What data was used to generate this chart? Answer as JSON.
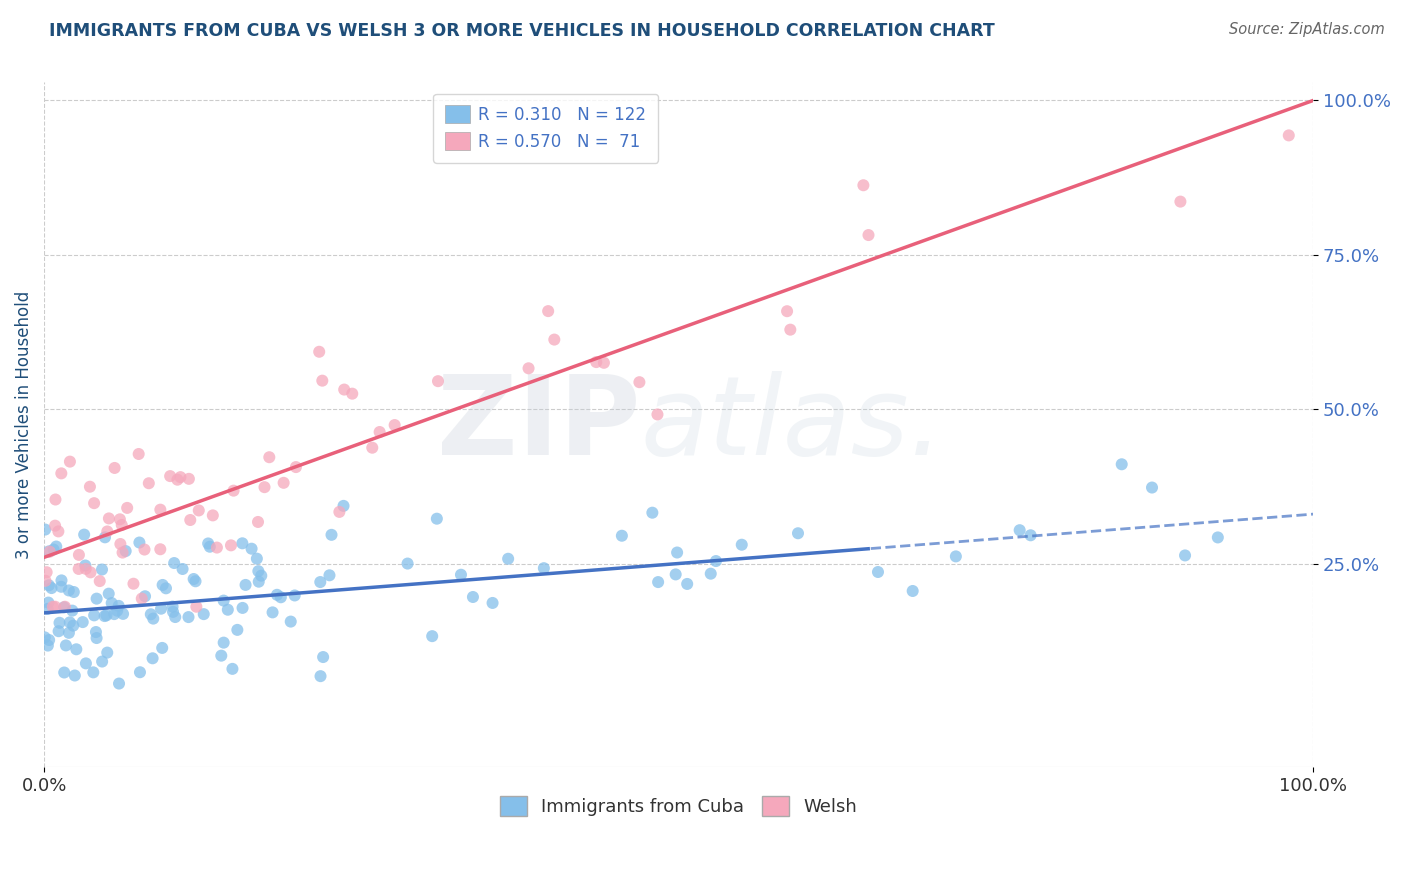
{
  "title": "IMMIGRANTS FROM CUBA VS WELSH 3 OR MORE VEHICLES IN HOUSEHOLD CORRELATION CHART",
  "source": "Source: ZipAtlas.com",
  "ylabel": "3 or more Vehicles in Household",
  "legend_labels": [
    "Immigrants from Cuba",
    "Welsh"
  ],
  "legend_r": [
    "0.310",
    "0.570"
  ],
  "legend_n": [
    "122",
    "71"
  ],
  "cuba_color": "#85BFEA",
  "welsh_color": "#F5A8BC",
  "cuba_line_color": "#4472C4",
  "welsh_line_color": "#E8607A",
  "background_color": "#ffffff",
  "title_color": "#1F4E79",
  "label_color": "#1F4E79",
  "tick_color_x": "#333333",
  "tick_color_y": "#4472C4",
  "source_color": "#666666",
  "xlim": [
    0.0,
    1.0
  ],
  "ylim": [
    0.0,
    1.0
  ],
  "y_ticks": [
    0.25,
    0.5,
    0.75,
    1.0
  ],
  "y_tick_labels": [
    "25.0%",
    "50.0%",
    "75.0%",
    "100.0%"
  ],
  "x_ticks": [
    0.0,
    1.0
  ],
  "x_tick_labels": [
    "0.0%",
    "100.0%"
  ],
  "cuba_trend_solid_end": 0.65,
  "cuba_trend_start_y": 0.17,
  "cuba_trend_end_y": 0.33,
  "welsh_trend_start_y": 0.26,
  "welsh_trend_end_y": 1.0
}
